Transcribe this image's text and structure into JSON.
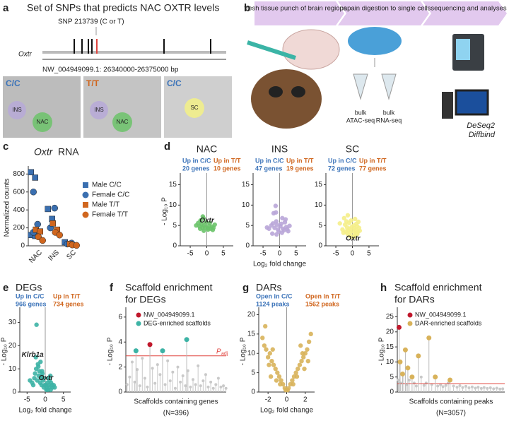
{
  "panel_a": {
    "label": "a",
    "title": "Set of SNPs that predicts NAC OXTR levels",
    "snp": "SNP 213739 (C or T)",
    "gene": "Oxtr",
    "coords": "NW_004949099.1: 26340000-26375000 bp",
    "sections": [
      {
        "genotype": "C/C",
        "regions": [
          "INS",
          "NAC"
        ]
      },
      {
        "genotype": "T/T",
        "regions": [
          "INS",
          "NAC"
        ]
      },
      {
        "genotype": "C/C",
        "regions": [
          "SC"
        ]
      }
    ]
  },
  "panel_b": {
    "label": "b",
    "steps": [
      "fresh tissue punch of brain regions",
      "papain digestion to single cells",
      "sequencing and analyses"
    ],
    "tubes": [
      [
        "bulk",
        "ATAC-seq"
      ],
      [
        "bulk",
        "RNA-seq"
      ]
    ],
    "tools": [
      "DeSeq2",
      "Diffbind"
    ]
  },
  "chart_data": [
    {
      "type": "strip",
      "panel": "c",
      "title": [
        "Oxtr",
        "RNA"
      ],
      "y_label": "Normalized counts",
      "categories": [
        "NAC",
        "INS",
        "SC"
      ],
      "ylim": [
        0,
        850
      ],
      "yticks": [
        0,
        200,
        400,
        600,
        800
      ],
      "series": [
        {
          "name": "Male C/C",
          "marker": "square",
          "color": "#3a6fb0",
          "x": [
            "NAC",
            "NAC",
            "NAC",
            "NAC",
            "INS",
            "INS",
            "SC"
          ],
          "values": [
            820,
            760,
            120,
            110,
            410,
            300,
            40
          ]
        },
        {
          "name": "Female C/C",
          "marker": "circle",
          "color": "#3a6fb0",
          "x": [
            "NAC",
            "NAC",
            "NAC",
            "INS",
            "INS",
            "SC",
            "SC"
          ],
          "values": [
            600,
            240,
            150,
            420,
            200,
            30,
            20
          ]
        },
        {
          "name": "Male T/T",
          "marker": "square",
          "color": "#d0661e",
          "x": [
            "NAC",
            "NAC",
            "INS",
            "INS",
            "SC"
          ],
          "values": [
            180,
            160,
            250,
            180,
            20
          ]
        },
        {
          "name": "Female T/T",
          "marker": "circle",
          "color": "#d0661e",
          "x": [
            "NAC",
            "NAC",
            "INS",
            "INS",
            "SC",
            "SC"
          ],
          "values": [
            100,
            60,
            150,
            120,
            10,
            5
          ]
        }
      ]
    },
    {
      "type": "volcano",
      "panel": "d",
      "title": "NAC",
      "y_label": "- Log₁₀ P",
      "left_note": [
        "Up in C/C",
        "20 genes"
      ],
      "right_note": [
        "Up in T/T",
        "10 genes"
      ],
      "xlim": [
        -8,
        8
      ],
      "xticks": [
        -5,
        0,
        5
      ],
      "ylim": [
        0,
        17
      ],
      "yticks": [
        0,
        5,
        10,
        15
      ],
      "color": "#6cc36a",
      "x": [
        -3.2,
        -2.6,
        -2.2,
        -1.9,
        -1.6,
        -1.3,
        -1.0,
        -0.8,
        -0.5,
        -0.3,
        0.3,
        0.6,
        0.9,
        1.2,
        1.5,
        2.0,
        2.4,
        -2.0,
        -1.2,
        0.4,
        1.8,
        -0.9
      ],
      "values": [
        5.0,
        5.6,
        4.8,
        6.2,
        5.3,
        4.4,
        6.8,
        5.0,
        4.5,
        5.8,
        4.3,
        4.9,
        5.6,
        4.2,
        4.7,
        4.4,
        5.2,
        4.2,
        7.2,
        4.0,
        3.9,
        3.7
      ],
      "labels": [
        {
          "text": "Oxtr",
          "x": -2.2,
          "y": 6.2
        }
      ]
    },
    {
      "type": "volcano",
      "title": "INS",
      "x_label": "Log₂ fold change",
      "left_note": [
        "Up in C/C",
        "47 genes"
      ],
      "right_note": [
        "Up in T/T",
        "19 genes"
      ],
      "xlim": [
        -8,
        8
      ],
      "xticks": [
        -5,
        0,
        5
      ],
      "ylim": [
        0,
        17
      ],
      "yticks": [
        0,
        5,
        10,
        15
      ],
      "color": "#b9a6d8",
      "x": [
        -3.8,
        -3.2,
        -2.5,
        -2.0,
        -1.8,
        -1.5,
        -1.2,
        -1.0,
        -0.8,
        -0.5,
        -0.3,
        0.2,
        0.5,
        0.8,
        1.0,
        1.3,
        1.6,
        2.0,
        2.3,
        2.6,
        3.0,
        -1.1,
        -0.9,
        0.7,
        1.8,
        -2.2
      ],
      "values": [
        4.5,
        4.2,
        5.0,
        5.5,
        8.0,
        4.4,
        9.8,
        6.0,
        5.2,
        4.0,
        3.5,
        4.8,
        5.4,
        6.8,
        4.2,
        3.8,
        5.8,
        4.6,
        4.1,
        3.6,
        4.9,
        8.2,
        2.8,
        3.2,
        6.5,
        3.0
      ]
    },
    {
      "type": "volcano",
      "title": "SC",
      "left_note": [
        "Up in C/C",
        "72 genes"
      ],
      "right_note": [
        "Up in T/T",
        "77 genes"
      ],
      "xlim": [
        -8,
        8
      ],
      "xticks": [
        -5,
        0,
        5
      ],
      "ylim": [
        0,
        17
      ],
      "yticks": [
        0,
        5,
        10,
        15
      ],
      "color": "#f5ee8a",
      "x": [
        -3.8,
        -3.0,
        -2.5,
        -2.2,
        -2.0,
        -1.8,
        -1.6,
        -1.4,
        -1.2,
        -1.0,
        -0.8,
        -0.6,
        -0.4,
        -0.2,
        0.2,
        0.4,
        0.6,
        0.8,
        1.0,
        1.2,
        1.4,
        1.6,
        1.8,
        2.0,
        2.2,
        -1.5,
        -1.1,
        -0.7,
        0.5,
        0.9,
        1.3,
        -2.7,
        -0.3,
        0.7,
        1.5
      ],
      "values": [
        5.5,
        4.0,
        6.8,
        5.2,
        3.5,
        6.0,
        4.5,
        7.5,
        3.8,
        5.6,
        4.2,
        3.3,
        6.2,
        4.6,
        3.6,
        5.0,
        4.3,
        6.6,
        3.9,
        5.4,
        4.8,
        3.4,
        5.9,
        4.4,
        3.7,
        3.0,
        2.6,
        2.4,
        2.5,
        2.8,
        3.1,
        3.2,
        2.2,
        2.3,
        2.9
      ],
      "labels": [
        {
          "text": "Oxtr",
          "x": -2.0,
          "y": 1.8
        }
      ]
    },
    {
      "type": "volcano",
      "panel": "e",
      "title": "DEGs",
      "y_label": "- Log₁₀ P",
      "x_label": "Log₂ fold change",
      "left_note": [
        "Up in C/C",
        "966 genes"
      ],
      "right_note": [
        "Up in T/T",
        "734 genes"
      ],
      "xlim": [
        -7,
        7
      ],
      "xticks": [
        -5,
        0,
        5
      ],
      "ylim": [
        0,
        35
      ],
      "yticks": [
        0,
        10,
        20,
        30
      ],
      "color": "#3db3a5",
      "x": [
        -4.2,
        -3.6,
        -3.0,
        -2.8,
        -2.5,
        -2.2,
        -2.0,
        -1.8,
        -1.6,
        -1.4,
        -1.2,
        -1.0,
        -0.8,
        -0.6,
        -0.4,
        -0.2,
        0.2,
        0.4,
        0.6,
        0.8,
        1.0,
        1.2,
        1.4,
        1.6,
        1.8,
        2.0,
        2.3,
        2.6,
        -2.6,
        -1.9,
        -1.3,
        -0.9,
        -0.5,
        0.3,
        0.7,
        1.1,
        1.5,
        -3.3,
        -1.0,
        -2.4
      ],
      "values": [
        5,
        4,
        6,
        8,
        10,
        5,
        12,
        7,
        9,
        4,
        6,
        3,
        8,
        5,
        2,
        3,
        3,
        2,
        4,
        6,
        3,
        5,
        7,
        4,
        3,
        2,
        3,
        2,
        15,
        11,
        13,
        9,
        6,
        1,
        1,
        2,
        1,
        3,
        7,
        29
      ],
      "labels": [
        {
          "text": "Klrb1a",
          "x": -6.5,
          "y": 16
        },
        {
          "text": "Oxtr",
          "x": -1.8,
          "y": 6
        }
      ]
    },
    {
      "type": "scaffold",
      "panel": "f",
      "title": [
        "Scaffold enrichment",
        "for DEGs"
      ],
      "y_label": "- Log₁₀ P",
      "x_label": "Scaffolds containing genes",
      "n_label": "(N=396)",
      "xlim": [
        0,
        396
      ],
      "ylim": [
        0,
        6.5
      ],
      "yticks": [
        0,
        2,
        4,
        6
      ],
      "threshold": 2.9,
      "threshold_label": [
        "P",
        "adj"
      ],
      "threshold_color": "#e0443e",
      "background": {
        "color": "#c9c9c9",
        "x": [
          5,
          15,
          25,
          35,
          45,
          55,
          65,
          75,
          85,
          105,
          115,
          125,
          135,
          155,
          165,
          175,
          185,
          195,
          205,
          215,
          225,
          235,
          245,
          255,
          265,
          275,
          285,
          295,
          305,
          315,
          325,
          335,
          345,
          355,
          365,
          375,
          385,
          395
        ],
        "values": [
          0.6,
          1.2,
          2.4,
          0.8,
          1.8,
          0.5,
          2.7,
          1.1,
          0.4,
          1.9,
          0.7,
          2.2,
          1.4,
          0.6,
          2.5,
          0.9,
          1.6,
          0.3,
          2.0,
          0.8,
          1.3,
          0.5,
          1.7,
          0.4,
          1.0,
          0.6,
          2.1,
          0.5,
          0.9,
          1.4,
          0.4,
          0.8,
          0.3,
          0.6,
          1.1,
          0.4,
          0.5,
          0.3
        ]
      },
      "series": [
        {
          "name": "NW_004949099.1",
          "color": "#c0182c",
          "x": [
            95
          ],
          "values": [
            3.8
          ]
        },
        {
          "name": "DEG-enriched scaffolds",
          "color": "#3db3a5",
          "x": [
            40,
            145,
            240
          ],
          "values": [
            3.3,
            3.3,
            4.2
          ]
        }
      ]
    },
    {
      "type": "volcano",
      "panel": "g",
      "title": "DARs",
      "y_label": "- Log₁₀ P",
      "x_label": "Log₂ fold change",
      "left_note": [
        "Open in C/C",
        "1124 peaks"
      ],
      "right_note": [
        "Open in T/T",
        "1562 peaks"
      ],
      "xlim": [
        -3,
        3
      ],
      "xticks": [
        -2,
        0,
        2
      ],
      "ylim": [
        0,
        21
      ],
      "yticks": [
        0,
        5,
        10,
        15,
        20
      ],
      "color": "#d8b25a",
      "x": [
        -2.6,
        -2.4,
        -2.2,
        -2.0,
        -1.8,
        -1.6,
        -1.4,
        -1.2,
        -1.0,
        -0.8,
        -0.6,
        -0.4,
        -0.2,
        0.2,
        0.4,
        0.6,
        0.8,
        1.0,
        1.2,
        1.4,
        1.6,
        1.8,
        2.0,
        2.2,
        2.4,
        2.6,
        -2.3,
        -1.9,
        -1.5,
        -1.1,
        -0.7,
        0.7,
        1.1,
        1.5,
        1.9,
        2.3,
        -1.7,
        1.7,
        0.1,
        -0.1
      ],
      "values": [
        14,
        12,
        11,
        9,
        10,
        8,
        7,
        6,
        5,
        4,
        3,
        2,
        1,
        1,
        2,
        3,
        4,
        5,
        6,
        7,
        8,
        9,
        10,
        11,
        13,
        15,
        17,
        7,
        11,
        3,
        2,
        2,
        4,
        12,
        6,
        8,
        4,
        10,
        0.5,
        0.5
      ]
    },
    {
      "type": "scaffold",
      "panel": "h",
      "title": [
        "Scaffold enrichment",
        "for DARs"
      ],
      "y_label": "- Log₁₀ P",
      "x_label": "Scaffolds containing peaks",
      "n_label": "(N=3057)",
      "xlim": [
        0,
        3057
      ],
      "ylim": [
        0,
        27
      ],
      "yticks": [
        0,
        5,
        10,
        15,
        20,
        25
      ],
      "threshold": 2.8,
      "threshold_color": "#e0443e",
      "background": {
        "color": "#c9c9c9",
        "x": [
          30,
          100,
          180,
          260,
          340,
          480,
          540,
          680,
          760,
          820,
          980,
          1150,
          1230,
          1300,
          1380,
          1450,
          1600,
          1700,
          1780,
          1860,
          1950,
          2040,
          2130,
          2220,
          2300,
          2390,
          2470,
          2560,
          2650,
          2740,
          2830,
          2920,
          3000
        ],
        "values": [
          4,
          3,
          6,
          2.5,
          4,
          3,
          2,
          5,
          2.2,
          3,
          2.5,
          2,
          2.4,
          1.8,
          2.2,
          3,
          2,
          1.6,
          2.1,
          1.5,
          1.9,
          1.4,
          1.7,
          1.3,
          1.6,
          1.2,
          1.5,
          1.2,
          1.4,
          1.1,
          1.3,
          1.0,
          1.1
        ]
      },
      "series": [
        {
          "name": "NW_004949099.1",
          "color": "#c0182c",
          "x": [
            50
          ],
          "values": [
            21.5
          ]
        },
        {
          "name": "DAR-enriched scaffolds",
          "color": "#d8b25a",
          "x": [
            80,
            150,
            230,
            300,
            420,
            600,
            900,
            1080,
            1500
          ],
          "values": [
            10,
            6,
            14,
            8,
            5,
            12,
            18,
            5,
            4
          ]
        }
      ]
    }
  ]
}
